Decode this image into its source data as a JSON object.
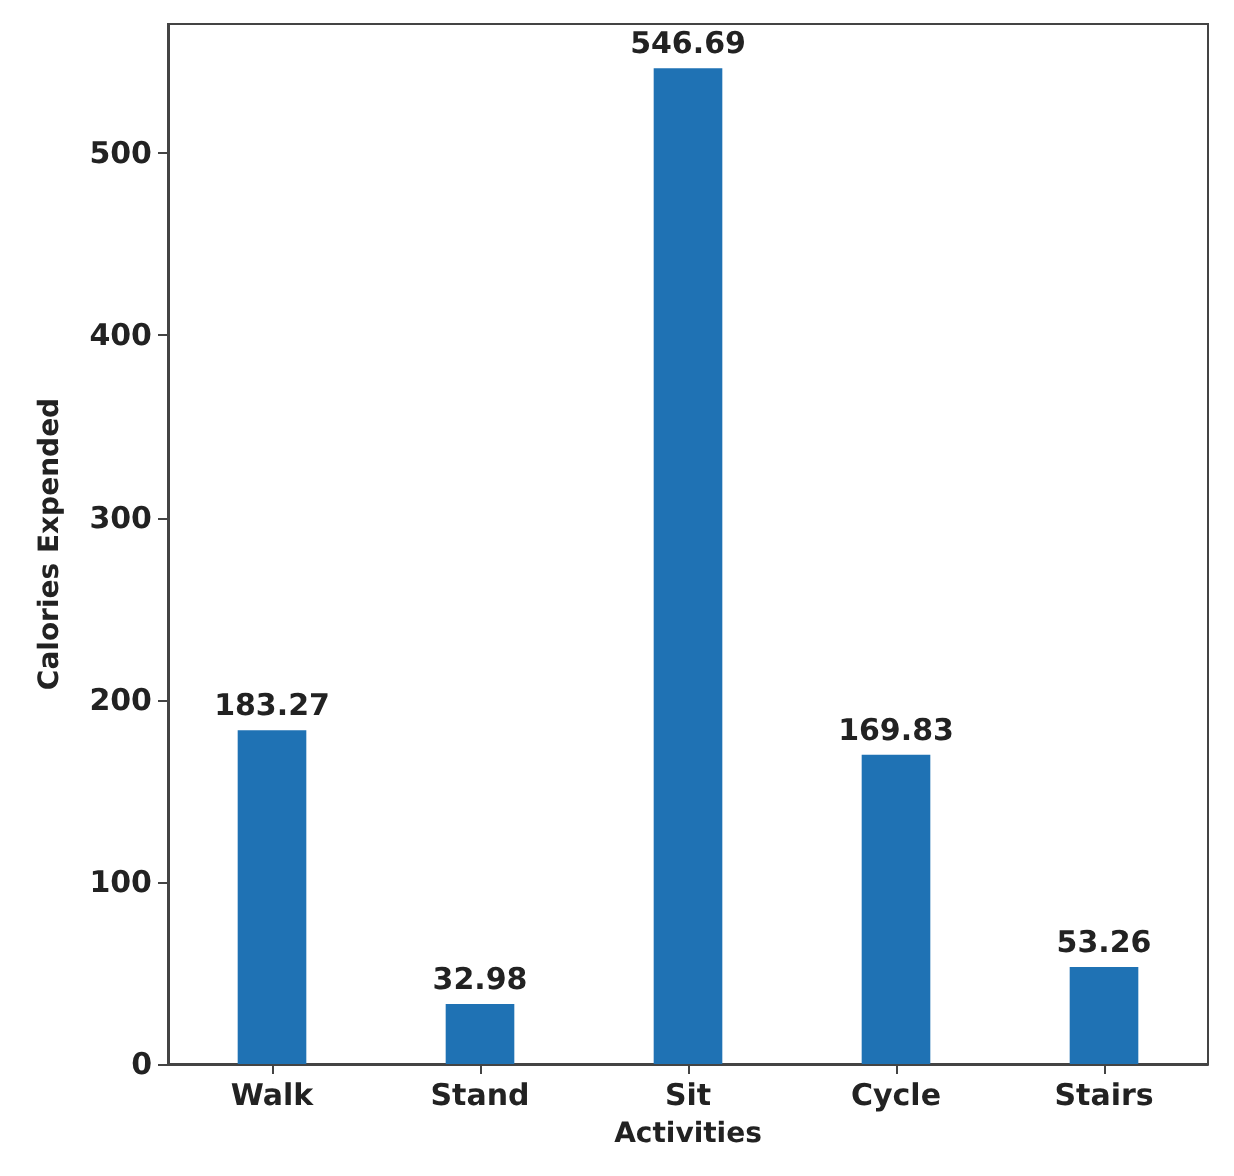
{
  "chart_data": {
    "type": "bar",
    "xlabel": "Activities",
    "ylabel": "Calories Expended",
    "categories": [
      "Walk",
      "Stand",
      "Sit",
      "Cycle",
      "Stairs"
    ],
    "values": [
      183.27,
      32.98,
      546.69,
      169.83,
      53.26
    ],
    "color": "#1f72b4",
    "ylim": [
      0,
      571
    ],
    "yticks": [
      0,
      100,
      200,
      300,
      400,
      500
    ],
    "data_labels": true,
    "grid": false
  }
}
